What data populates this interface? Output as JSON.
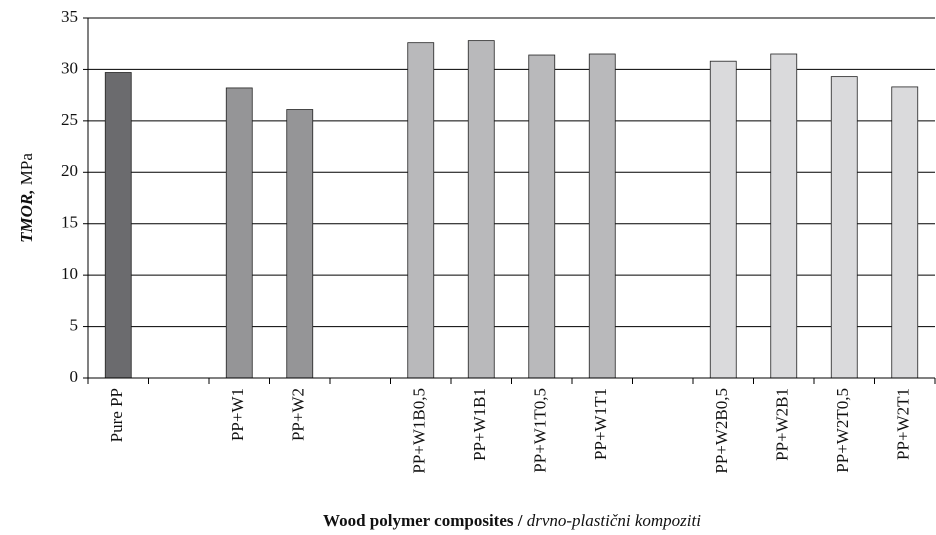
{
  "chart_data": {
    "type": "bar",
    "ylabel_parts": [
      "TMOR,",
      " MPa"
    ],
    "xlabel_parts": [
      "Wood polymer composites /",
      " drvno-plastični kompoziti"
    ],
    "categories": [
      "Pure PP",
      null,
      "PP+W1",
      "PP+W2",
      null,
      "PP+W1B0,5",
      "PP+W1B1",
      "PP+W1T0,5",
      "PP+W1T1",
      null,
      "PP+W2B0,5",
      "PP+W2B1",
      "PP+W2T0,5",
      "PP+W2T1"
    ],
    "values": [
      29.7,
      null,
      28.2,
      26.1,
      null,
      32.6,
      32.8,
      31.4,
      31.5,
      null,
      30.8,
      31.5,
      29.3,
      28.3
    ],
    "colors": [
      "#6b6b6e",
      null,
      "#959597",
      "#959597",
      null,
      "#b9b9bb",
      "#b9b9bb",
      "#b9b9bb",
      "#b9b9bb",
      null,
      "#dadadc",
      "#dadadc",
      "#dadadc",
      "#dadadc"
    ],
    "ylim": [
      0,
      35
    ],
    "yticks": [
      0,
      5,
      10,
      15,
      20,
      25,
      30,
      35
    ],
    "grid": true
  }
}
